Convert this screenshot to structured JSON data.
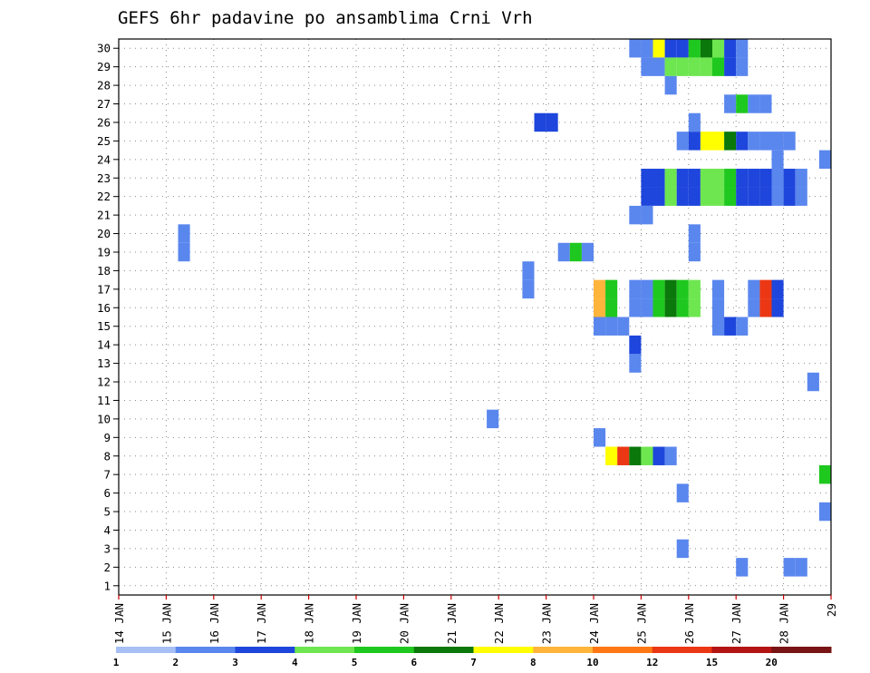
{
  "chart_data": {
    "type": "heatmap",
    "title": "GEFS 6hr padavine po ansamblima Crni Vrh",
    "xlabel": "",
    "ylabel": "",
    "x_tick_labels": [
      "14 JAN",
      "15 JAN",
      "16 JAN",
      "17 JAN",
      "18 JAN",
      "19 JAN",
      "20 JAN",
      "21 JAN",
      "22 JAN",
      "23 JAN",
      "24 JAN",
      "25 JAN",
      "26 JAN",
      "27 JAN",
      "28 JAN",
      "29"
    ],
    "y_tick_labels": [
      "1",
      "2",
      "3",
      "4",
      "5",
      "6",
      "7",
      "8",
      "9",
      "10",
      "11",
      "12",
      "13",
      "14",
      "15",
      "16",
      "17",
      "18",
      "19",
      "20",
      "21",
      "22",
      "23",
      "24",
      "25",
      "26",
      "27",
      "28",
      "29",
      "30"
    ],
    "xlim_days": [
      0,
      15
    ],
    "ylim": [
      0.5,
      30.5
    ],
    "grid": true,
    "legend": {
      "position": "bottom",
      "boundaries": [
        "1",
        "2",
        "3",
        "4",
        "5",
        "6",
        "7",
        "8",
        "10",
        "12",
        "15",
        "20"
      ],
      "colors": [
        "#a6bff5",
        "#5a87ee",
        "#1e46dc",
        "#6ee650",
        "#1ec81e",
        "#0a780a",
        "#ffff00",
        "#ffb43c",
        "#ff7814",
        "#eb3714",
        "#b41414",
        "#781414"
      ]
    },
    "cells": [
      [
        30,
        10.75,
        1
      ],
      [
        30,
        11.0,
        1
      ],
      [
        30,
        11.25,
        6
      ],
      [
        30,
        11.5,
        2
      ],
      [
        30,
        11.75,
        2
      ],
      [
        30,
        12.0,
        4
      ],
      [
        30,
        12.25,
        5
      ],
      [
        30,
        12.5,
        3
      ],
      [
        30,
        12.75,
        2
      ],
      [
        30,
        13.0,
        1
      ],
      [
        29,
        11.0,
        1
      ],
      [
        29,
        11.25,
        1
      ],
      [
        29,
        11.5,
        3
      ],
      [
        29,
        11.75,
        3
      ],
      [
        29,
        12.0,
        3
      ],
      [
        29,
        12.25,
        3
      ],
      [
        29,
        12.5,
        4
      ],
      [
        29,
        12.75,
        2
      ],
      [
        29,
        13.0,
        1
      ],
      [
        28,
        11.5,
        1
      ],
      [
        27,
        12.75,
        1
      ],
      [
        27,
        13.0,
        4
      ],
      [
        27,
        13.25,
        1
      ],
      [
        27,
        13.5,
        1
      ],
      [
        26,
        8.75,
        2
      ],
      [
        26,
        9.0,
        2
      ],
      [
        26,
        12.0,
        1
      ],
      [
        25,
        11.75,
        1
      ],
      [
        25,
        12.0,
        2
      ],
      [
        25,
        12.25,
        6
      ],
      [
        25,
        12.5,
        6
      ],
      [
        25,
        12.75,
        5
      ],
      [
        25,
        13.0,
        2
      ],
      [
        25,
        13.25,
        1
      ],
      [
        25,
        13.5,
        1
      ],
      [
        25,
        13.75,
        1
      ],
      [
        25,
        14.0,
        1
      ],
      [
        24,
        13.75,
        1
      ],
      [
        24,
        14.75,
        1
      ],
      [
        23,
        11.0,
        2
      ],
      [
        23,
        11.25,
        2
      ],
      [
        23,
        11.5,
        3
      ],
      [
        23,
        11.75,
        2
      ],
      [
        23,
        12.0,
        2
      ],
      [
        23,
        12.25,
        3
      ],
      [
        23,
        12.5,
        3
      ],
      [
        23,
        12.75,
        4
      ],
      [
        23,
        13.0,
        2
      ],
      [
        23,
        13.25,
        2
      ],
      [
        23,
        13.5,
        2
      ],
      [
        23,
        13.75,
        1
      ],
      [
        23,
        14.0,
        2
      ],
      [
        23,
        14.25,
        1
      ],
      [
        22,
        11.0,
        2
      ],
      [
        22,
        11.25,
        2
      ],
      [
        22,
        11.5,
        3
      ],
      [
        22,
        11.75,
        2
      ],
      [
        22,
        12.0,
        2
      ],
      [
        22,
        12.25,
        3
      ],
      [
        22,
        12.5,
        3
      ],
      [
        22,
        12.75,
        4
      ],
      [
        22,
        13.0,
        2
      ],
      [
        22,
        13.25,
        2
      ],
      [
        22,
        13.5,
        2
      ],
      [
        22,
        13.75,
        1
      ],
      [
        22,
        14.0,
        2
      ],
      [
        22,
        14.25,
        1
      ],
      [
        21,
        10.75,
        1
      ],
      [
        21,
        11.0,
        1
      ],
      [
        20,
        1.25,
        1
      ],
      [
        20,
        12.0,
        1
      ],
      [
        19,
        1.25,
        1
      ],
      [
        19,
        12.0,
        1
      ],
      [
        19,
        9.25,
        1
      ],
      [
        19,
        9.5,
        4
      ],
      [
        19,
        9.75,
        1
      ],
      [
        18,
        8.5,
        1
      ],
      [
        17,
        8.5,
        1
      ],
      [
        17,
        10.0,
        7
      ],
      [
        17,
        10.25,
        4
      ],
      [
        17,
        10.75,
        1
      ],
      [
        17,
        11.0,
        1
      ],
      [
        17,
        11.25,
        4
      ],
      [
        17,
        11.5,
        5
      ],
      [
        17,
        11.75,
        4
      ],
      [
        17,
        12.0,
        3
      ],
      [
        17,
        12.5,
        1
      ],
      [
        17,
        13.25,
        1
      ],
      [
        17,
        13.5,
        9
      ],
      [
        17,
        13.75,
        2
      ],
      [
        16,
        10.0,
        7
      ],
      [
        16,
        10.25,
        4
      ],
      [
        16,
        10.75,
        1
      ],
      [
        16,
        11.0,
        1
      ],
      [
        16,
        11.25,
        4
      ],
      [
        16,
        11.5,
        5
      ],
      [
        16,
        11.75,
        4
      ],
      [
        16,
        12.0,
        3
      ],
      [
        16,
        12.5,
        1
      ],
      [
        16,
        13.25,
        1
      ],
      [
        16,
        13.5,
        9
      ],
      [
        16,
        13.75,
        2
      ],
      [
        15,
        10.0,
        1
      ],
      [
        15,
        10.25,
        1
      ],
      [
        15,
        10.5,
        1
      ],
      [
        15,
        12.5,
        1
      ],
      [
        15,
        12.75,
        2
      ],
      [
        15,
        13.0,
        1
      ],
      [
        14,
        10.75,
        2
      ],
      [
        13,
        10.75,
        1
      ],
      [
        12,
        14.5,
        1
      ],
      [
        10,
        7.75,
        1
      ],
      [
        9,
        10.0,
        1
      ],
      [
        8,
        10.25,
        6
      ],
      [
        8,
        10.5,
        9
      ],
      [
        8,
        10.75,
        5
      ],
      [
        8,
        11.0,
        3
      ],
      [
        8,
        11.25,
        2
      ],
      [
        8,
        11.5,
        1
      ],
      [
        7,
        14.75,
        4
      ],
      [
        6,
        11.75,
        1
      ],
      [
        5,
        14.75,
        1
      ],
      [
        3,
        11.75,
        1
      ],
      [
        2,
        13.0,
        1
      ],
      [
        2,
        14.0,
        1
      ],
      [
        2,
        14.25,
        1
      ]
    ]
  }
}
